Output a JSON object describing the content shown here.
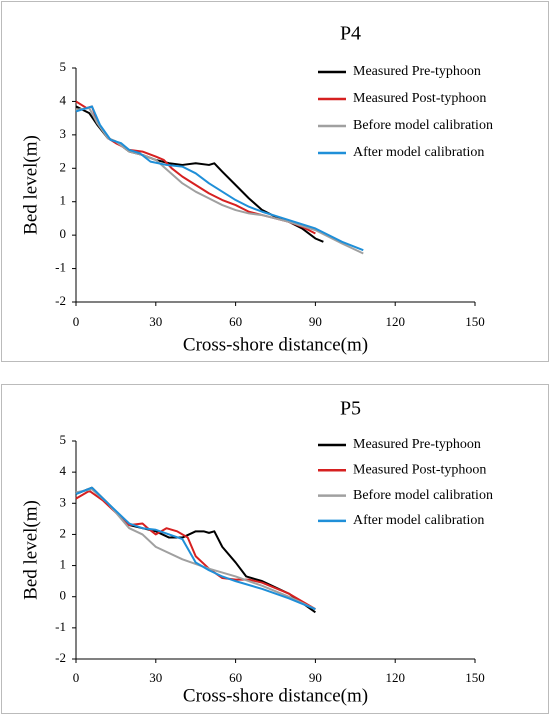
{
  "chart_data": [
    {
      "type": "line",
      "title": "P4",
      "x_label": "Cross-shore distance(m)",
      "y_label": "Bed level(m)",
      "xlim": [
        0,
        150
      ],
      "ylim": [
        -2,
        5
      ],
      "xticks": [
        0,
        30,
        60,
        90,
        120,
        150
      ],
      "yticks": [
        -2,
        -1,
        0,
        1,
        2,
        3,
        4,
        5
      ],
      "series": [
        {
          "name": "Measured Pre-typhoon",
          "color": "#000000",
          "x": [
            0,
            5,
            8,
            12,
            15,
            20,
            25,
            30,
            35,
            40,
            45,
            50,
            52,
            55,
            60,
            65,
            70,
            75,
            80,
            85,
            90,
            93
          ],
          "values": [
            3.85,
            3.65,
            3.3,
            2.9,
            2.8,
            2.5,
            2.4,
            2.25,
            2.15,
            2.1,
            2.15,
            2.1,
            2.15,
            1.9,
            1.5,
            1.1,
            0.75,
            0.55,
            0.4,
            0.2,
            -0.1,
            -0.2
          ]
        },
        {
          "name": "Measured Post-typhoon",
          "color": "#d62020",
          "x": [
            0,
            4,
            6,
            8,
            12,
            15,
            20,
            25,
            30,
            33,
            36,
            40,
            45,
            50,
            55,
            60,
            65,
            70,
            75,
            80,
            85,
            90
          ],
          "values": [
            4.0,
            3.8,
            3.85,
            3.4,
            2.9,
            2.75,
            2.55,
            2.5,
            2.35,
            2.25,
            2.0,
            1.75,
            1.5,
            1.25,
            1.05,
            0.9,
            0.7,
            0.6,
            0.5,
            0.4,
            0.25,
            0.05
          ]
        },
        {
          "name": "Before model calibration",
          "color": "#a0a0a0",
          "x": [
            0,
            5,
            8,
            12,
            15,
            20,
            25,
            30,
            35,
            40,
            45,
            50,
            55,
            60,
            65,
            70,
            80,
            90,
            100,
            108
          ],
          "values": [
            3.75,
            3.8,
            3.35,
            2.9,
            2.8,
            2.5,
            2.4,
            2.25,
            1.9,
            1.55,
            1.3,
            1.1,
            0.9,
            0.75,
            0.65,
            0.6,
            0.4,
            0.15,
            -0.25,
            -0.55
          ]
        },
        {
          "name": "After model calibration",
          "color": "#1f8fd8",
          "x": [
            0,
            6,
            9,
            13,
            17,
            20,
            24,
            28,
            34,
            40,
            45,
            50,
            55,
            60,
            65,
            70,
            80,
            90,
            100,
            108
          ],
          "values": [
            3.7,
            3.85,
            3.3,
            2.85,
            2.75,
            2.55,
            2.45,
            2.2,
            2.1,
            2.05,
            1.85,
            1.55,
            1.3,
            1.05,
            0.85,
            0.7,
            0.45,
            0.2,
            -0.2,
            -0.45
          ]
        }
      ]
    },
    {
      "type": "line",
      "title": "P5",
      "x_label": "Cross-shore distance(m)",
      "y_label": "Bed level(m)",
      "xlim": [
        0,
        150
      ],
      "ylim": [
        -2,
        5
      ],
      "xticks": [
        0,
        30,
        60,
        90,
        120,
        150
      ],
      "yticks": [
        -2,
        -1,
        0,
        1,
        2,
        3,
        4,
        5
      ],
      "series": [
        {
          "name": "Measured Pre-typhoon",
          "color": "#000000",
          "x": [
            0,
            6,
            12,
            20,
            25,
            30,
            35,
            40,
            45,
            48,
            50,
            52,
            55,
            60,
            64,
            70,
            80,
            90
          ],
          "values": [
            3.3,
            3.5,
            3.0,
            2.3,
            2.2,
            2.1,
            1.9,
            1.9,
            2.1,
            2.1,
            2.05,
            2.1,
            1.6,
            1.1,
            0.65,
            0.5,
            0.1,
            -0.5
          ]
        },
        {
          "name": "Measured Post-typhoon",
          "color": "#d62020",
          "x": [
            0,
            5,
            10,
            20,
            25,
            27,
            30,
            34,
            38,
            42,
            45,
            50,
            55,
            60,
            65,
            70,
            80,
            90
          ],
          "values": [
            3.15,
            3.4,
            3.1,
            2.3,
            2.35,
            2.2,
            2.0,
            2.2,
            2.1,
            1.9,
            1.3,
            0.9,
            0.6,
            0.55,
            0.55,
            0.45,
            0.1,
            -0.4
          ]
        },
        {
          "name": "Before model calibration",
          "color": "#a0a0a0",
          "x": [
            0,
            6,
            12,
            20,
            25,
            30,
            40,
            50,
            60,
            70,
            80,
            90
          ],
          "values": [
            3.35,
            3.45,
            3.0,
            2.2,
            2.0,
            1.6,
            1.2,
            0.9,
            0.65,
            0.35,
            0,
            -0.4
          ]
        },
        {
          "name": "After model calibration",
          "color": "#1f8fd8",
          "x": [
            0,
            6,
            12,
            20,
            25,
            30,
            35,
            40,
            45,
            50,
            55,
            60,
            70,
            80,
            90
          ],
          "values": [
            3.3,
            3.5,
            3.0,
            2.35,
            2.2,
            2.15,
            2.0,
            1.85,
            1.1,
            0.85,
            0.65,
            0.5,
            0.25,
            -0.05,
            -0.4
          ]
        }
      ]
    }
  ]
}
